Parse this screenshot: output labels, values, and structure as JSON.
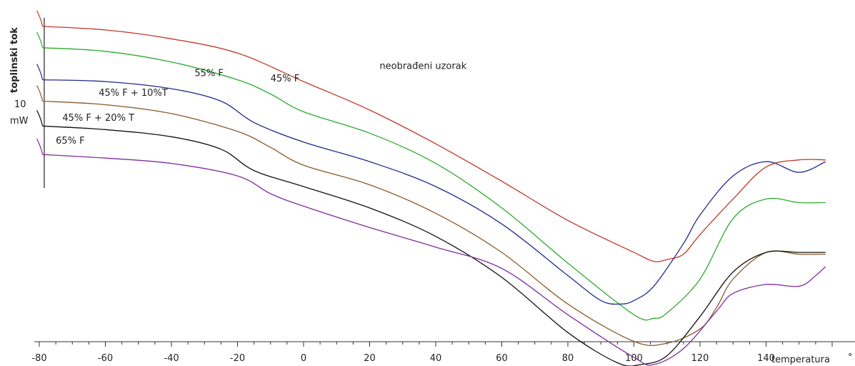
{
  "chart_data": {
    "type": "line",
    "xlabel": "temperatura",
    "xlabel_unit": "°",
    "ylabel": "toplinski tok",
    "scale_label": {
      "value": "10",
      "unit": "mW"
    },
    "xlim": [
      -80,
      160
    ],
    "ylim": [
      0,
      100
    ],
    "x_ticks": [
      -80,
      -60,
      -40,
      -20,
      0,
      20,
      40,
      60,
      80,
      100,
      120,
      140
    ],
    "grid": false,
    "series": [
      {
        "name": "neobrađeni uzorak",
        "color": "#c0392b",
        "x": [
          -79,
          -60,
          -40,
          -20,
          0,
          20,
          40,
          60,
          80,
          100,
          106,
          110,
          115,
          120,
          130,
          140,
          150,
          158
        ],
        "y": [
          95.0,
          94.0,
          91.5,
          87.5,
          79.5,
          71.5,
          62.0,
          51.5,
          40.5,
          31.5,
          29.0,
          29.5,
          31.0,
          36.5,
          46.5,
          55.5,
          57.5,
          57.5
        ]
      },
      {
        "name": "45% F",
        "color": "#2eaa2e",
        "x": [
          -79,
          -60,
          -40,
          -20,
          -10,
          0,
          20,
          40,
          60,
          80,
          100,
          106,
          110,
          120,
          130,
          140,
          150,
          158
        ],
        "y": [
          89.0,
          88.0,
          85.0,
          80.0,
          76.0,
          71.0,
          65.0,
          56.5,
          44.0,
          28.5,
          14.0,
          13.0,
          14.5,
          24.0,
          41.0,
          46.5,
          45.5,
          45.5
        ]
      },
      {
        "name": "55% F",
        "color": "#1f2a8a",
        "x": [
          -79,
          -60,
          -40,
          -25,
          -15,
          0,
          20,
          40,
          60,
          80,
          90,
          96,
          100,
          106,
          115,
          120,
          130,
          140,
          150,
          158
        ],
        "y": [
          80.0,
          79.5,
          77.5,
          74.0,
          68.0,
          62.5,
          57.0,
          50.0,
          39.5,
          25.0,
          18.0,
          17.0,
          18.0,
          22.0,
          34.0,
          42.0,
          53.0,
          57.0,
          54.0,
          57.0
        ]
      },
      {
        "name": "45% F + 10%T",
        "color": "#8b5a2b",
        "x": [
          -79,
          -60,
          -40,
          -20,
          -10,
          0,
          20,
          40,
          60,
          80,
          100,
          110,
          120,
          125,
          130,
          140,
          150,
          158
        ],
        "y": [
          74.0,
          73.0,
          70.5,
          65.5,
          61.0,
          56.0,
          50.5,
          42.5,
          31.5,
          17.0,
          6.5,
          6.0,
          10.0,
          16.0,
          24.0,
          31.5,
          31.0,
          31.0
        ]
      },
      {
        "name": "45% F + 20% T",
        "color": "#111111",
        "x": [
          -79,
          -60,
          -40,
          -25,
          -15,
          0,
          20,
          40,
          60,
          80,
          95,
          102,
          110,
          120,
          130,
          140,
          150,
          158
        ],
        "y": [
          67.0,
          66.0,
          64.0,
          60.5,
          54.5,
          50.0,
          44.0,
          36.0,
          24.5,
          9.0,
          0.5,
          0.0,
          2.5,
          13.5,
          26.0,
          31.5,
          31.5,
          31.5
        ]
      },
      {
        "name": "65% F",
        "color": "#7e2d9e",
        "x": [
          -79,
          -60,
          -40,
          -20,
          -10,
          0,
          20,
          40,
          60,
          80,
          100,
          106,
          115,
          125,
          130,
          140,
          150,
          155,
          158
        ],
        "y": [
          59.0,
          58.0,
          56.5,
          53.0,
          48.0,
          44.5,
          38.5,
          33.0,
          27.0,
          14.0,
          2.0,
          0.0,
          4.5,
          15.0,
          20.0,
          22.5,
          22.0,
          25.0,
          27.5
        ]
      }
    ],
    "annotations": [
      {
        "text": "neobrađeni uzorak",
        "x": 23,
        "y": 83.0
      },
      {
        "text": "45% F",
        "x": -10,
        "y": 79.5
      },
      {
        "text": "55% F",
        "x": -33,
        "y": 81.0
      },
      {
        "text": "45% F + 10%T",
        "x": -62,
        "y": 75.5
      },
      {
        "text": "45% F + 20% T",
        "x": -73,
        "y": 68.5
      },
      {
        "text": "65% F",
        "x": -75,
        "y": 62.0
      }
    ]
  }
}
